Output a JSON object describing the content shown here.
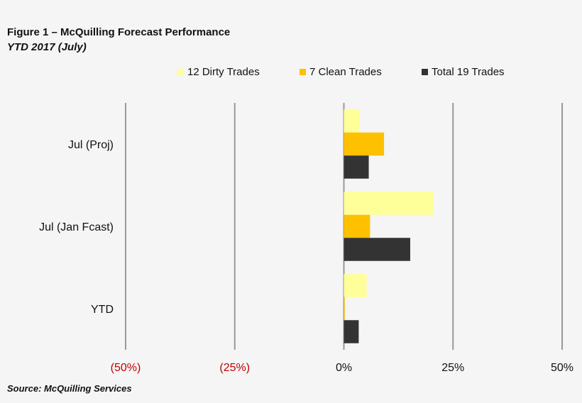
{
  "header": {
    "title": "Figure 1 – McQuilling Forecast Performance",
    "subtitle": "YTD 2017 (July)"
  },
  "footer": {
    "source": "Source: McQuilling Services"
  },
  "colors": {
    "dirty": "#ffff99",
    "clean": "#ffc000",
    "total": "#333333",
    "gridline": "#999999",
    "negative_tick": "#c00000",
    "positive_tick": "#111111",
    "background": "#f5f5f5"
  },
  "chart_data": {
    "type": "bar",
    "orientation": "horizontal",
    "categories": [
      "Jul (Proj)",
      "Jul (Jan Fcast)",
      "YTD"
    ],
    "series": [
      {
        "name": "12 Dirty Trades",
        "values": [
          3.5,
          20.5,
          5.2
        ]
      },
      {
        "name": "7 Clean Trades",
        "values": [
          9.2,
          6.0,
          0.2
        ]
      },
      {
        "name": "Total 19 Trades",
        "values": [
          5.7,
          15.2,
          3.4
        ]
      }
    ],
    "xlim": [
      -50,
      50
    ],
    "xticks": [
      -50,
      -25,
      0,
      25,
      50
    ],
    "xtick_labels": [
      "(50%)",
      "(25%)",
      "0%",
      "25%",
      "50%"
    ],
    "grid": true,
    "legend_position": "top"
  }
}
